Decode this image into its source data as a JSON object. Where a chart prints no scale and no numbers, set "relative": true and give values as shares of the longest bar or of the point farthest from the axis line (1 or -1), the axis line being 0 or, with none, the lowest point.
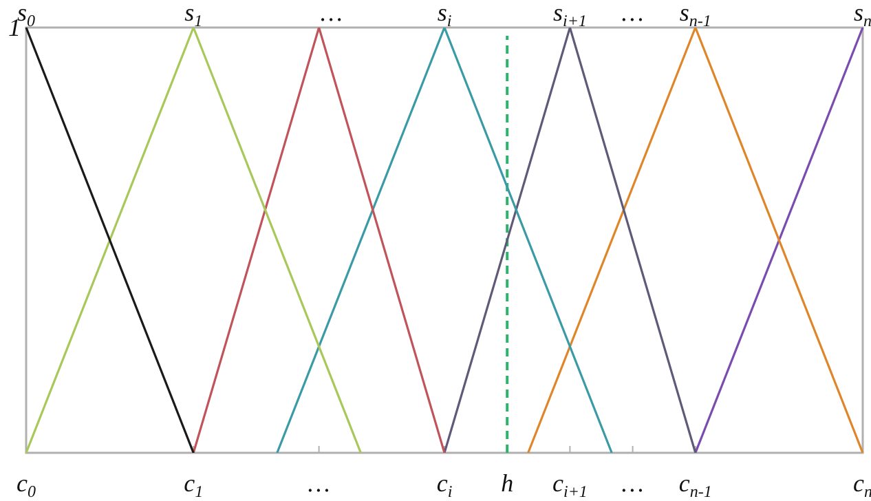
{
  "chart_data": {
    "type": "line",
    "relative": true,
    "categories": [
      "c$_{0}$",
      null,
      null,
      null,
      null,
      null,
      null,
      null,
      "c$_{1}$",
      null,
      null,
      null,
      null,
      null,
      "…",
      null,
      null,
      null,
      null,
      null,
      "c$_{i}$",
      null,
      null,
      "h",
      null,
      null,
      "c$_{i+1}$",
      null,
      null,
      "…",
      null,
      null,
      "c$_{n-1}$",
      null,
      null,
      null,
      null,
      null,
      null,
      null,
      "c$_{n}$"
    ],
    "series": [
      {
        "color": "#1a1a1a",
        "values": [
          1,
          null,
          null,
          null,
          null,
          null,
          null,
          null,
          0,
          null,
          null,
          null,
          null,
          null,
          null,
          null,
          null,
          null,
          null,
          null,
          null,
          null,
          null,
          null,
          null,
          null,
          null,
          null,
          null,
          null,
          null,
          null,
          null,
          null,
          null,
          null,
          null,
          null,
          null,
          null,
          null
        ]
      },
      {
        "color": "#a8c85a",
        "values": [
          0,
          null,
          null,
          null,
          null,
          null,
          null,
          null,
          1,
          null,
          null,
          null,
          null,
          null,
          null,
          null,
          0,
          null,
          null,
          null,
          null,
          null,
          null,
          null,
          null,
          null,
          null,
          null,
          null,
          null,
          null,
          null,
          null,
          null,
          null,
          null,
          null,
          null,
          null,
          null,
          null
        ]
      },
      {
        "color": "#c0545a",
        "values": [
          null,
          null,
          null,
          null,
          null,
          null,
          null,
          null,
          0,
          null,
          null,
          null,
          null,
          null,
          1,
          null,
          null,
          null,
          null,
          null,
          0,
          null,
          null,
          null,
          null,
          null,
          null,
          null,
          null,
          null,
          null,
          null,
          null,
          null,
          null,
          null,
          null,
          null,
          null,
          null,
          null
        ]
      },
      {
        "color": "#3a9aa6",
        "values": [
          null,
          null,
          null,
          null,
          null,
          null,
          null,
          null,
          null,
          null,
          null,
          null,
          0,
          null,
          null,
          null,
          null,
          null,
          null,
          null,
          1,
          null,
          null,
          null,
          null,
          null,
          null,
          null,
          0,
          null,
          null,
          null,
          null,
          null,
          null,
          null,
          null,
          null,
          null,
          null,
          null
        ]
      },
      {
        "color": "#5e5a78",
        "values": [
          null,
          null,
          null,
          null,
          null,
          null,
          null,
          null,
          null,
          null,
          null,
          null,
          null,
          null,
          null,
          null,
          null,
          null,
          null,
          null,
          0,
          null,
          null,
          null,
          null,
          null,
          1,
          null,
          null,
          null,
          null,
          null,
          0,
          null,
          null,
          null,
          null,
          null,
          null,
          null,
          null
        ]
      },
      {
        "color": "#e0862a",
        "values": [
          null,
          null,
          null,
          null,
          null,
          null,
          null,
          null,
          null,
          null,
          null,
          null,
          null,
          null,
          null,
          null,
          null,
          null,
          null,
          null,
          null,
          null,
          null,
          null,
          0,
          null,
          null,
          null,
          null,
          null,
          null,
          null,
          1,
          null,
          null,
          null,
          null,
          null,
          null,
          null,
          0
        ]
      },
      {
        "color": "#7a4cb0",
        "values": [
          null,
          null,
          null,
          null,
          null,
          null,
          null,
          null,
          null,
          null,
          null,
          null,
          null,
          null,
          null,
          null,
          null,
          null,
          null,
          null,
          null,
          null,
          null,
          null,
          null,
          null,
          null,
          null,
          null,
          null,
          null,
          null,
          0,
          null,
          null,
          null,
          null,
          null,
          null,
          null,
          1
        ]
      }
    ],
    "ref_lines": [
      {
        "axis": "x",
        "value": "h",
        "color": "#2db36b",
        "line_style": "dashed"
      }
    ],
    "annotations": [
      "1",
      "…",
      "…",
      {
        "text": "s$_{0}$",
        "x": "c$_{0}$",
        "y": 1
      },
      {
        "text": "s$_{1}$",
        "x": "c$_{1}$",
        "y": 1
      },
      {
        "text": "s$_{i}$",
        "x": "c$_{i}$",
        "y": 1
      },
      {
        "text": "s$_{i+1}$",
        "x": "c$_{i+1}$",
        "y": 1
      },
      {
        "text": "s$_{n-1}$",
        "x": "c$_{n-1}$",
        "y": 1
      },
      {
        "text": "s$_{n}$",
        "x": "c$_{n}$",
        "y": 1
      }
    ],
    "grid": false,
    "legend": false,
    "marker": "none",
    "line_style": "solid"
  }
}
